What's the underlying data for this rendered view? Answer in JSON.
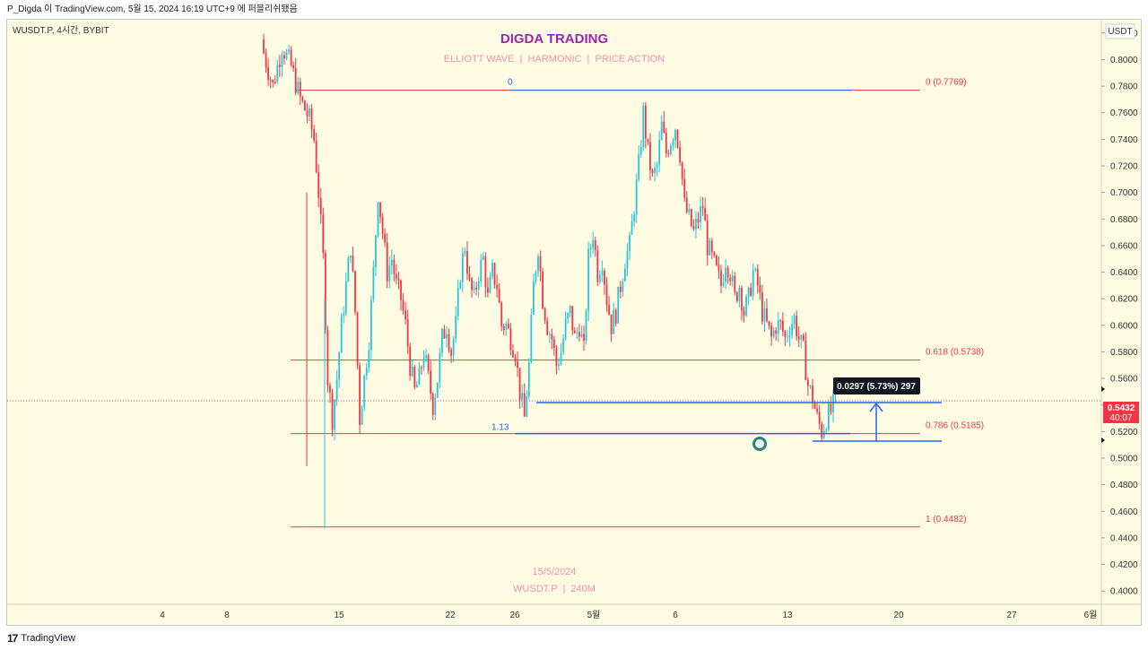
{
  "header": {
    "text": "P_Digda 이 TradingView.com, 5월 15, 2024 16:19 UTC+9 에 퍼블리쉬됐음"
  },
  "symbol": {
    "label": "WUSDT.P, 4시간, BYBIT"
  },
  "watermark": {
    "title": "DIGDA TRADING",
    "subtitle": "ELLIOTT WAVE  |  HARMONIC  |  PRICE ACTION",
    "date": "15/5/2024",
    "pair": "WUSDT.P  |  240M"
  },
  "price_axis": {
    "currency": "USDT",
    "current_price": "0.5432",
    "countdown": "40:07"
  },
  "measure": {
    "label": "0.0297 (5.73%) 297"
  },
  "footer": {
    "brand_logo": "17",
    "brand_name": "TradingView"
  },
  "colors": {
    "up": "#26c6da",
    "down": "#f23645",
    "fib": "#f23645",
    "blue": "#2962ff",
    "background": "#fefbe3",
    "watermark_title": "#9c27b0",
    "watermark_sub": "#f48fb1"
  },
  "chart_data": {
    "type": "candlestick",
    "y_range": [
      0.39,
      0.83
    ],
    "y_ticks": [
      "0.8200",
      "0.8000",
      "0.7800",
      "0.7600",
      "0.7400",
      "0.7200",
      "0.7000",
      "0.6800",
      "0.6600",
      "0.6400",
      "0.6200",
      "0.6000",
      "0.5800",
      "0.5600",
      "0.5400",
      "0.5200",
      "0.5000",
      "0.4800",
      "0.4600",
      "0.4400",
      "0.4200",
      "0.4000"
    ],
    "x_ticks": [
      "4",
      "8",
      "15",
      "22",
      "26",
      "5월",
      "6",
      "13",
      "20",
      "27",
      "6월"
    ],
    "fib_levels": [
      {
        "label": "0 (0.7769)",
        "value": 0.7769
      },
      {
        "label": "0.618 (0.5738)",
        "value": 0.5738
      },
      {
        "label": "0.786 (0.5185)",
        "value": 0.5185
      },
      {
        "label": "1 (0.4482)",
        "value": 0.4482
      }
    ],
    "projection_labels": [
      {
        "label": "0",
        "value": 0.7769
      },
      {
        "label": "1.13",
        "value": 0.5185
      }
    ],
    "close_path": [
      [
        0,
        0.805
      ],
      [
        4,
        0.78
      ],
      [
        8,
        0.81
      ],
      [
        12,
        0.795
      ],
      [
        16,
        0.77
      ],
      [
        20,
        0.755
      ],
      [
        22,
        0.74
      ],
      [
        24,
        0.7
      ],
      [
        26,
        0.65
      ],
      [
        28,
        0.56
      ],
      [
        30,
        0.53
      ],
      [
        32,
        0.56
      ],
      [
        34,
        0.6
      ],
      [
        36,
        0.63
      ],
      [
        38,
        0.66
      ],
      [
        40,
        0.61
      ],
      [
        42,
        0.53
      ],
      [
        44,
        0.56
      ],
      [
        46,
        0.59
      ],
      [
        48,
        0.64
      ],
      [
        50,
        0.7
      ],
      [
        52,
        0.67
      ],
      [
        54,
        0.64
      ],
      [
        56,
        0.65
      ],
      [
        58,
        0.63
      ],
      [
        60,
        0.62
      ],
      [
        62,
        0.6
      ],
      [
        64,
        0.57
      ],
      [
        66,
        0.55
      ],
      [
        68,
        0.56
      ],
      [
        70,
        0.58
      ],
      [
        72,
        0.56
      ],
      [
        74,
        0.54
      ],
      [
        76,
        0.56
      ],
      [
        78,
        0.59
      ],
      [
        80,
        0.6
      ],
      [
        82,
        0.58
      ],
      [
        84,
        0.6
      ],
      [
        86,
        0.64
      ],
      [
        88,
        0.66
      ],
      [
        90,
        0.63
      ],
      [
        92,
        0.62
      ],
      [
        94,
        0.64
      ],
      [
        96,
        0.65
      ],
      [
        98,
        0.62
      ],
      [
        100,
        0.64
      ],
      [
        102,
        0.63
      ],
      [
        104,
        0.6
      ],
      [
        106,
        0.6
      ],
      [
        108,
        0.59
      ],
      [
        110,
        0.58
      ],
      [
        112,
        0.55
      ],
      [
        114,
        0.53
      ],
      [
        116,
        0.57
      ],
      [
        118,
        0.63
      ],
      [
        120,
        0.66
      ],
      [
        122,
        0.62
      ],
      [
        124,
        0.6
      ],
      [
        126,
        0.59
      ],
      [
        128,
        0.57
      ],
      [
        130,
        0.58
      ],
      [
        132,
        0.6
      ],
      [
        134,
        0.61
      ],
      [
        136,
        0.59
      ],
      [
        138,
        0.6
      ],
      [
        140,
        0.58
      ],
      [
        142,
        0.65
      ],
      [
        144,
        0.67
      ],
      [
        146,
        0.64
      ],
      [
        148,
        0.65
      ],
      [
        150,
        0.62
      ],
      [
        152,
        0.6
      ],
      [
        154,
        0.61
      ],
      [
        156,
        0.63
      ],
      [
        158,
        0.65
      ],
      [
        160,
        0.66
      ],
      [
        162,
        0.69
      ],
      [
        164,
        0.72
      ],
      [
        166,
        0.76
      ],
      [
        168,
        0.73
      ],
      [
        170,
        0.71
      ],
      [
        172,
        0.72
      ],
      [
        174,
        0.75
      ],
      [
        176,
        0.73
      ],
      [
        178,
        0.74
      ],
      [
        180,
        0.75
      ],
      [
        182,
        0.73
      ],
      [
        184,
        0.69
      ],
      [
        186,
        0.68
      ],
      [
        188,
        0.67
      ],
      [
        190,
        0.68
      ],
      [
        192,
        0.69
      ],
      [
        194,
        0.66
      ],
      [
        196,
        0.65
      ],
      [
        198,
        0.64
      ],
      [
        200,
        0.63
      ],
      [
        202,
        0.65
      ],
      [
        204,
        0.64
      ],
      [
        206,
        0.62
      ],
      [
        208,
        0.63
      ],
      [
        210,
        0.61
      ],
      [
        212,
        0.62
      ],
      [
        214,
        0.64
      ],
      [
        216,
        0.63
      ],
      [
        218,
        0.61
      ],
      [
        220,
        0.6
      ],
      [
        222,
        0.59
      ],
      [
        224,
        0.6
      ],
      [
        226,
        0.6
      ],
      [
        228,
        0.59
      ],
      [
        230,
        0.6
      ],
      [
        232,
        0.605
      ],
      [
        234,
        0.59
      ],
      [
        236,
        0.58
      ],
      [
        238,
        0.555
      ],
      [
        240,
        0.545
      ],
      [
        242,
        0.53
      ],
      [
        244,
        0.52
      ],
      [
        246,
        0.53
      ],
      [
        248,
        0.535
      ],
      [
        250,
        0.5432
      ]
    ]
  }
}
